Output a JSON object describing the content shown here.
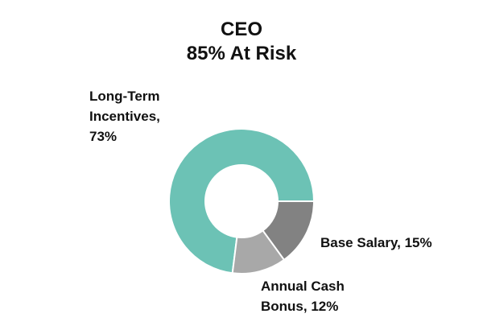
{
  "chart_data": {
    "type": "pie",
    "variant": "donut",
    "title": "CEO",
    "subtitle": "85% At Risk",
    "slices": [
      {
        "label": "Long-Term Incentives",
        "value": 73,
        "display": "Long-Term\nIncentives,\n73%",
        "color": "#6cc2b5"
      },
      {
        "label": "Base Salary",
        "value": 15,
        "display": "Base Salary, 15%",
        "color": "#828282"
      },
      {
        "label": "Annual Cash Bonus",
        "value": 12,
        "display": "Annual Cash\nBonus, 12%",
        "color": "#a8a8a8"
      }
    ],
    "legend": "none"
  }
}
